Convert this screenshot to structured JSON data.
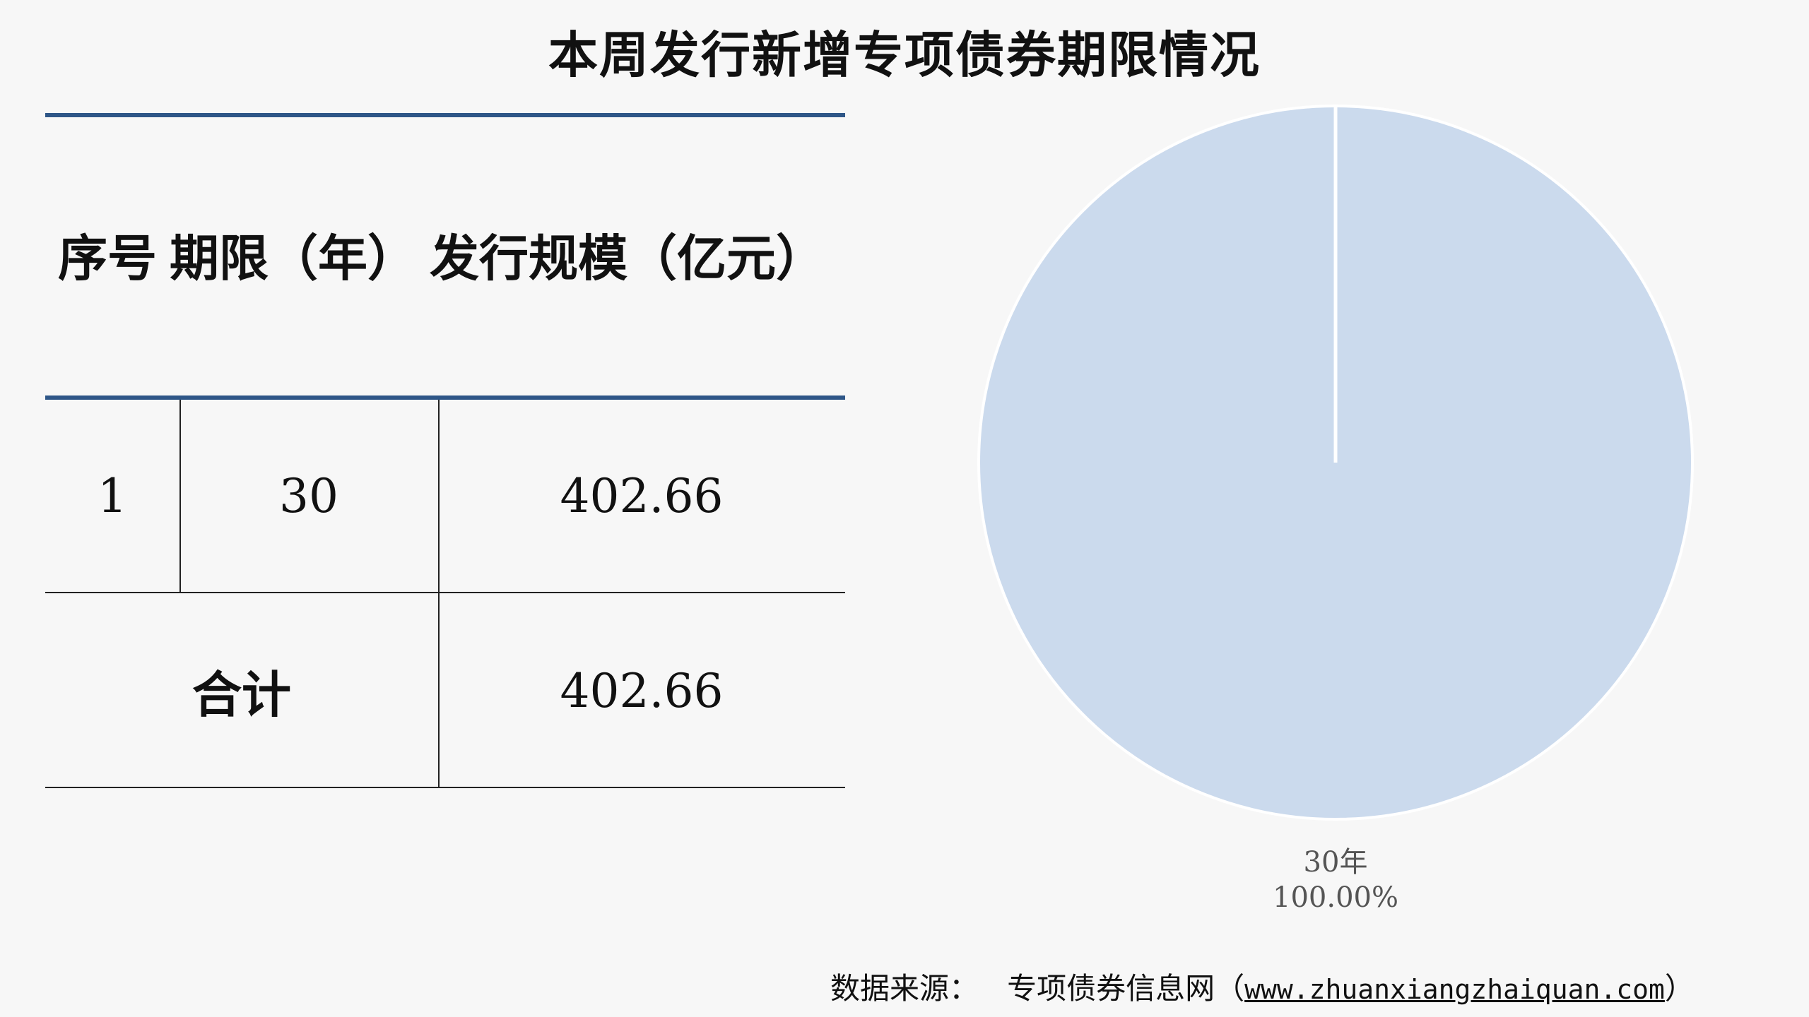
{
  "title": "本周发行新增专项债券期限情况",
  "table": {
    "headers": [
      "序号",
      "期限（年）",
      "发行规模（亿元）"
    ],
    "rows": [
      {
        "index": "1",
        "term": "30",
        "amount": "402.66"
      }
    ],
    "total": {
      "label": "合计",
      "amount": "402.66"
    }
  },
  "chart_data": {
    "type": "pie",
    "categories": [
      "30年"
    ],
    "values": [
      100.0
    ],
    "labels": [
      {
        "category": "30年",
        "percent": "100.00%"
      }
    ],
    "colors": [
      "#cbdaed"
    ]
  },
  "source": {
    "prefix": "数据来源：",
    "name": "专项债券信息网（",
    "url": "www.zhuanxiangzhaiquan.com",
    "suffix": "）"
  }
}
